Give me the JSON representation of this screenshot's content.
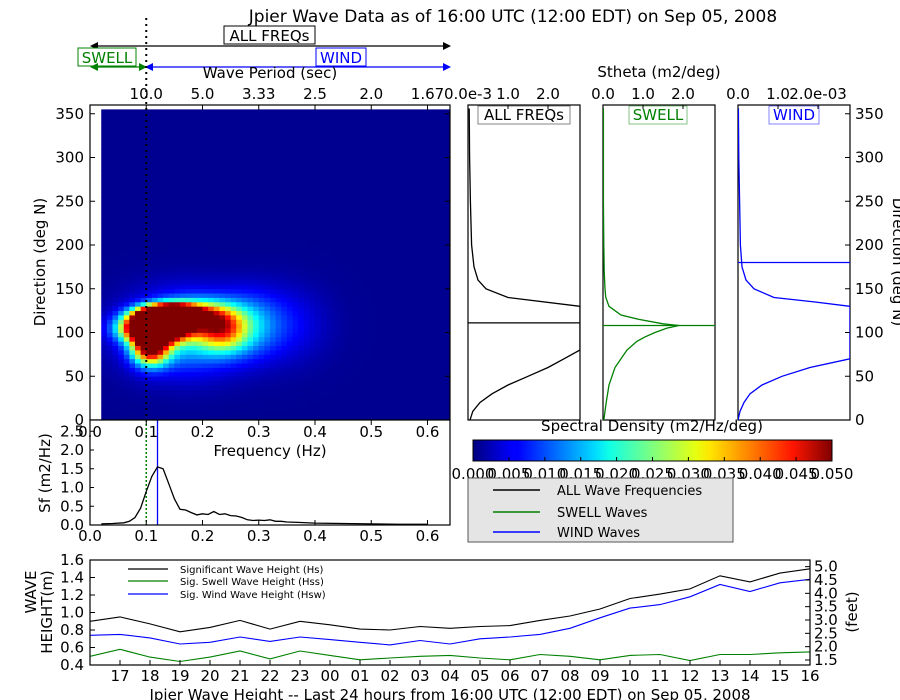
{
  "header": {
    "title": "Jpier Wave Data as of 16:00 UTC (12:00 EDT) on Sep 05, 2008",
    "all_freqs_label": "ALL FREQs",
    "swell_label": "SWELL",
    "wind_label": "WIND",
    "wave_period_label": "Wave Period (sec)",
    "stheta_label": "Stheta (m2/deg)"
  },
  "colors": {
    "all": "#000000",
    "swell": "#008000",
    "wind": "#0000ff",
    "legend_bg": "#e5e5e5"
  },
  "chart_data": [
    {
      "id": "directional-spectrum",
      "type": "heatmap",
      "xlabel": "Frequency (Hz)",
      "ylabel": "Direction (deg N)",
      "xlim": [
        0.0,
        0.64
      ],
      "ylim": [
        0,
        360
      ],
      "x_ticks": [
        "0.0",
        "0.1",
        "0.2",
        "0.3",
        "0.4",
        "0.5",
        "0.6"
      ],
      "y_ticks": [
        "0",
        "50",
        "100",
        "150",
        "200",
        "250",
        "300",
        "350"
      ],
      "top_axis_label": "Wave Period (sec)",
      "period_ticks": [
        {
          "label": "10.0",
          "freq": 0.1
        },
        {
          "label": "5.0",
          "freq": 0.2
        },
        {
          "label": "3.33",
          "freq": 0.3
        },
        {
          "label": "2.5",
          "freq": 0.4
        },
        {
          "label": "2.0",
          "freq": 0.5
        },
        {
          "label": "1.67",
          "freq": 0.6
        }
      ],
      "colormap": "jet",
      "clim": [
        0.0,
        0.05
      ],
      "peak_frequency": 0.1,
      "swell_wind_separation_freq": 0.1,
      "blobs": [
        {
          "f": 0.115,
          "d": 105,
          "sf": 0.035,
          "sd": 10,
          "a": 0.09
        },
        {
          "f": 0.125,
          "d": 118,
          "sf": 0.03,
          "sd": 8,
          "a": 0.07
        },
        {
          "f": 0.15,
          "d": 122,
          "sf": 0.028,
          "sd": 7,
          "a": 0.065
        },
        {
          "f": 0.108,
          "d": 85,
          "sf": 0.022,
          "sd": 14,
          "a": 0.05
        },
        {
          "f": 0.2,
          "d": 118,
          "sf": 0.04,
          "sd": 12,
          "a": 0.03
        },
        {
          "f": 0.235,
          "d": 100,
          "sf": 0.03,
          "sd": 15,
          "a": 0.022
        },
        {
          "f": 0.17,
          "d": 100,
          "sf": 0.07,
          "sd": 30,
          "a": 0.018
        },
        {
          "f": 0.28,
          "d": 110,
          "sf": 0.04,
          "sd": 25,
          "a": 0.01
        },
        {
          "f": 0.35,
          "d": 110,
          "sf": 0.05,
          "sd": 30,
          "a": 0.005
        }
      ]
    },
    {
      "id": "frequency-spectrum",
      "type": "line",
      "xlabel": "Frequency (Hz)",
      "ylabel": "Sf (m2/Hz)",
      "xlim": [
        0.0,
        0.64
      ],
      "ylim": [
        0.0,
        2.8
      ],
      "x_ticks": [
        "0.0",
        "0.1",
        "0.2",
        "0.3",
        "0.4",
        "0.5",
        "0.6"
      ],
      "y_ticks": [
        "0.0",
        "0.5",
        "1.0",
        "1.5",
        "2.0",
        "2.5"
      ],
      "series": [
        {
          "x": [
            0.02,
            0.04,
            0.06,
            0.07,
            0.08,
            0.09,
            0.1,
            0.11,
            0.12,
            0.13,
            0.14,
            0.15,
            0.16,
            0.17,
            0.18,
            0.19,
            0.2,
            0.21,
            0.22,
            0.23,
            0.24,
            0.25,
            0.26,
            0.27,
            0.28,
            0.29,
            0.3,
            0.31,
            0.32,
            0.33,
            0.34,
            0.35,
            0.37,
            0.4,
            0.45,
            0.5,
            0.55,
            0.6
          ],
          "y": [
            0.03,
            0.04,
            0.06,
            0.1,
            0.2,
            0.45,
            0.9,
            1.3,
            1.55,
            1.5,
            1.1,
            0.7,
            0.42,
            0.4,
            0.33,
            0.27,
            0.3,
            0.28,
            0.36,
            0.28,
            0.3,
            0.25,
            0.24,
            0.2,
            0.14,
            0.12,
            0.13,
            0.12,
            0.14,
            0.1,
            0.1,
            0.08,
            0.07,
            0.05,
            0.04,
            0.03,
            0.02,
            0.02
          ]
        }
      ],
      "swell_wind_separation_freq": 0.1,
      "peak_frequency": 0.12
    },
    {
      "id": "stheta-all",
      "type": "line",
      "panel_label": "ALL FREQs",
      "xlim": [
        0.0,
        2.8
      ],
      "ylim": [
        0,
        360
      ],
      "x_ticks": [
        "0.0e-3",
        "1.0",
        "2.0"
      ],
      "mean_direction": 111,
      "series": [
        {
          "name": "ALL Wave Frequencies",
          "y": [
            0,
            10,
            20,
            30,
            40,
            50,
            60,
            70,
            80,
            90,
            100,
            111,
            122,
            130,
            140,
            150,
            160,
            175,
            200,
            250,
            300,
            356
          ],
          "x": [
            0.05,
            0.12,
            0.3,
            0.6,
            1.0,
            1.5,
            2.0,
            2.4,
            2.8,
            2.8,
            2.8,
            2.8,
            2.8,
            2.8,
            1.0,
            0.45,
            0.25,
            0.15,
            0.09,
            0.06,
            0.04,
            0.03
          ]
        }
      ]
    },
    {
      "id": "stheta-swell",
      "type": "line",
      "panel_label": "SWELL",
      "xlim": [
        0.0,
        2.8
      ],
      "ylim": [
        0,
        360
      ],
      "x_ticks": [
        "0.0",
        "1.0",
        "2.0"
      ],
      "mean_direction": 108,
      "series": [
        {
          "name": "SWELL Waves",
          "y": [
            0,
            20,
            40,
            60,
            70,
            80,
            90,
            95,
            100,
            105,
            108,
            110,
            115,
            120,
            130,
            140,
            150,
            170,
            200,
            250,
            300,
            356
          ],
          "x": [
            0.02,
            0.08,
            0.15,
            0.3,
            0.45,
            0.6,
            0.85,
            1.05,
            1.3,
            1.6,
            1.9,
            1.5,
            0.9,
            0.45,
            0.15,
            0.07,
            0.05,
            0.03,
            0.02,
            0.01,
            0.01,
            0.01
          ]
        }
      ]
    },
    {
      "id": "stheta-wind",
      "type": "line",
      "panel_label": "WIND",
      "xlim": [
        0.0,
        0.0028
      ],
      "ylim": [
        0,
        360
      ],
      "x_ticks": [
        "0.0",
        "1.0",
        "2.0e-03"
      ],
      "mean_direction": 180,
      "series": [
        {
          "name": "WIND Waves",
          "y": [
            0,
            10,
            20,
            30,
            40,
            50,
            60,
            70,
            80,
            90,
            100,
            110,
            125,
            130,
            135,
            140,
            150,
            160,
            175,
            200,
            250,
            300,
            356
          ],
          "x": [
            0.0,
            5e-05,
            0.00015,
            0.0003,
            0.0006,
            0.0011,
            0.0018,
            0.0028,
            0.0028,
            0.0028,
            0.0028,
            0.0028,
            0.0028,
            0.0028,
            0.0019,
            0.0009,
            0.0004,
            0.0002,
            0.0001,
            6e-05,
            4e-05,
            2e-05,
            1e-05
          ]
        }
      ]
    },
    {
      "id": "spectral-colorbar",
      "type": "heatmap",
      "label": "Spectral Density (m2/Hz/deg)",
      "clim": [
        0.0,
        0.05
      ],
      "ticks": [
        "0.000",
        "0.005",
        "0.010",
        "0.015",
        "0.020",
        "0.025",
        "0.030",
        "0.035",
        "0.040",
        "0.045",
        "0.050"
      ]
    },
    {
      "id": "legend",
      "type": "line",
      "entries": [
        "ALL Wave Frequencies",
        "SWELL Waves",
        "WIND Waves"
      ]
    },
    {
      "id": "wave-height-24h",
      "type": "line",
      "xlabel": "Jpier Wave Height -- Last 24 hours from 16:00 UTC (12:00 EDT) on Sep 05, 2008",
      "ylabel_lines": [
        "WAVE",
        "HEIGHT(m)"
      ],
      "ylabel_right": "(feet)",
      "ylim": [
        0.4,
        1.6
      ],
      "y_ticks": [
        "0.4",
        "0.6",
        "0.8",
        "1.0",
        "1.2",
        "1.4",
        "1.6"
      ],
      "right_ticks": [
        "1.5",
        "2.0",
        "2.5",
        "3.0",
        "3.5",
        "4.0",
        "4.5",
        "5.0"
      ],
      "x_ticks": [
        "17",
        "18",
        "19",
        "20",
        "21",
        "22",
        "23",
        "00",
        "01",
        "02",
        "03",
        "04",
        "05",
        "06",
        "07",
        "08",
        "09",
        "10",
        "11",
        "12",
        "13",
        "14",
        "15",
        "16"
      ],
      "series": [
        {
          "name": "Significant Wave Height (Hs)",
          "values": [
            0.9,
            0.95,
            0.87,
            0.78,
            0.83,
            0.91,
            0.81,
            0.9,
            0.86,
            0.81,
            0.8,
            0.84,
            0.82,
            0.84,
            0.85,
            0.91,
            0.96,
            1.04,
            1.16,
            1.21,
            1.27,
            1.42,
            1.35,
            1.45,
            1.5
          ]
        },
        {
          "name": "Sig. Swell Wave Height (Hss)",
          "values": [
            0.5,
            0.58,
            0.49,
            0.44,
            0.49,
            0.56,
            0.47,
            0.56,
            0.51,
            0.46,
            0.48,
            0.5,
            0.51,
            0.48,
            0.46,
            0.52,
            0.5,
            0.46,
            0.51,
            0.52,
            0.45,
            0.52,
            0.52,
            0.54,
            0.55
          ]
        },
        {
          "name": "Sig. Wind Wave Height (Hsw)",
          "values": [
            0.74,
            0.75,
            0.71,
            0.64,
            0.66,
            0.72,
            0.67,
            0.72,
            0.69,
            0.66,
            0.63,
            0.68,
            0.64,
            0.7,
            0.72,
            0.75,
            0.82,
            0.94,
            1.05,
            1.09,
            1.18,
            1.32,
            1.24,
            1.34,
            1.38
          ]
        }
      ]
    }
  ]
}
